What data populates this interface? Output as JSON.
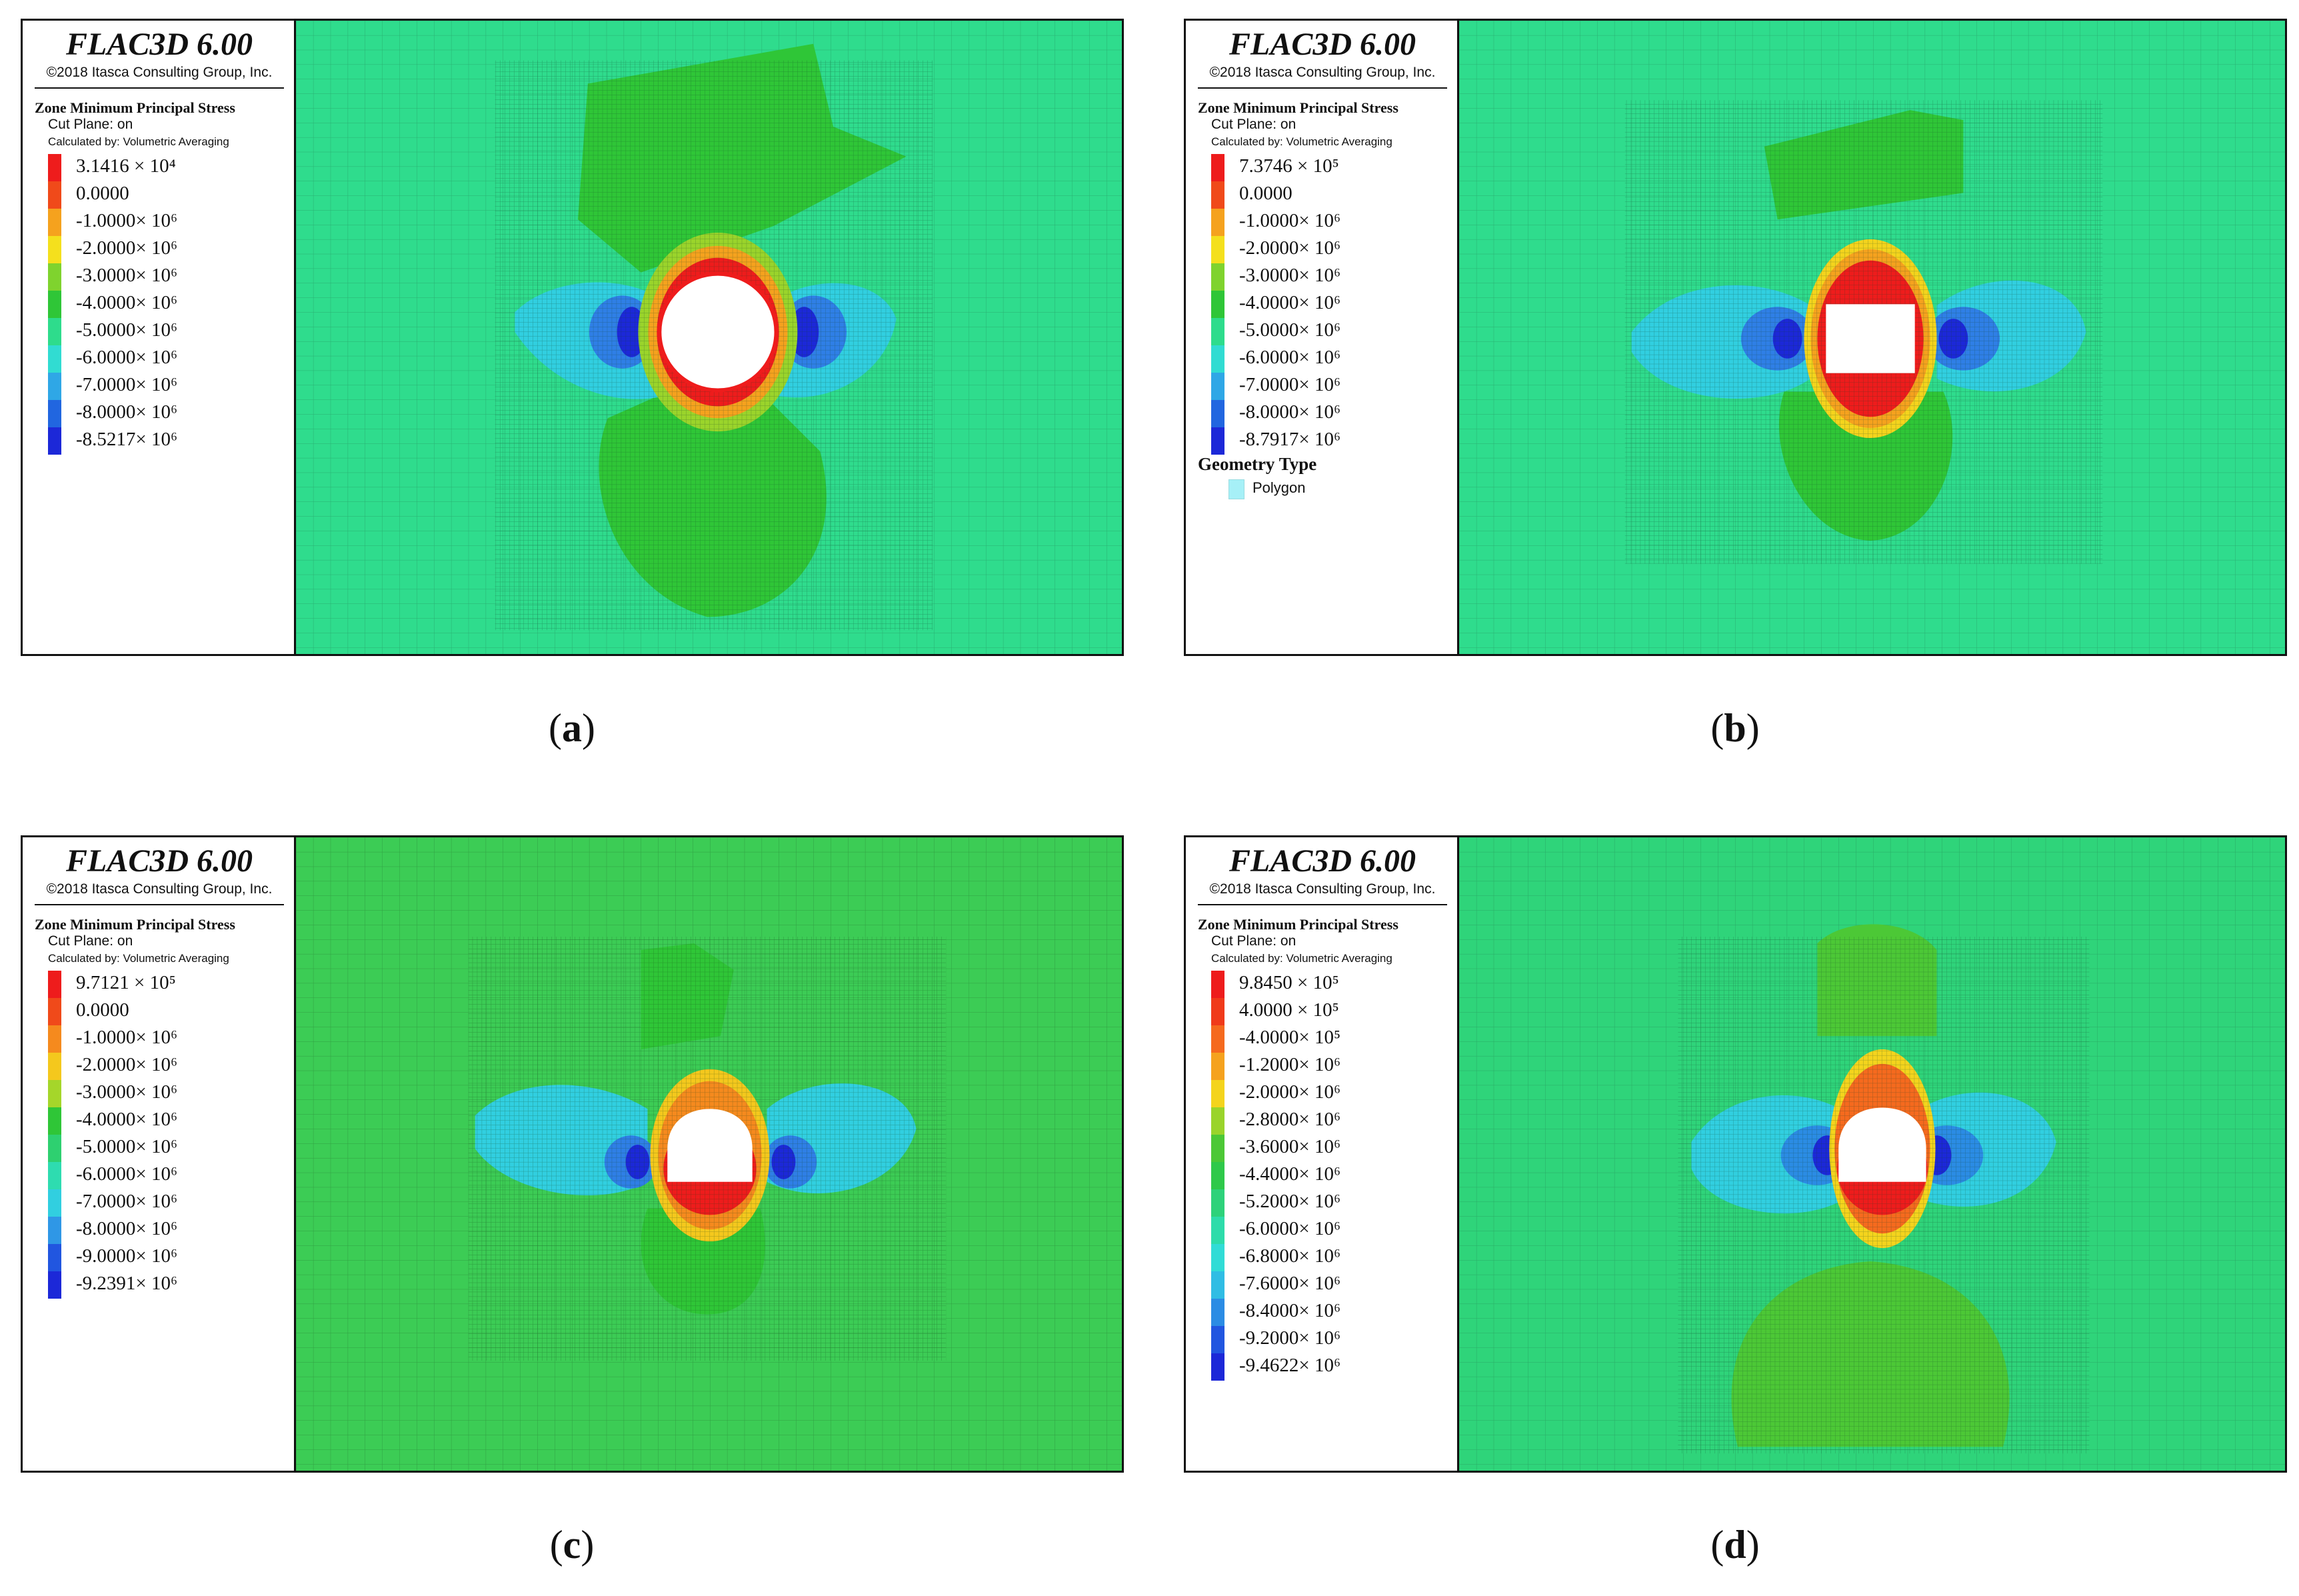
{
  "panels": [
    {
      "id": "a",
      "caption_letter": "a",
      "legend": {
        "title": "FLAC3D 6.00",
        "copyright": "©2018 Itasca Consulting Group, Inc.",
        "heading": "Zone Minimum Principal Stress",
        "cut_plane": "Cut Plane: on",
        "calculated": "Calculated by: Volumetric Averaging",
        "scale": [
          {
            "label": "3.1416 × 10⁴",
            "color": "#ee1c1c"
          },
          {
            "label": "0.0000",
            "color": "#f04a1a"
          },
          {
            "label": "-1.0000× 10⁶",
            "color": "#f5a21e"
          },
          {
            "label": "-2.0000× 10⁶",
            "color": "#f4e01d"
          },
          {
            "label": "-3.0000× 10⁶",
            "color": "#7fd32e"
          },
          {
            "label": "-4.0000× 10⁶",
            "color": "#2fc637"
          },
          {
            "label": "-5.0000× 10⁶",
            "color": "#2edc8c"
          },
          {
            "label": "-6.0000× 10⁶",
            "color": "#31dcd2"
          },
          {
            "label": "-7.0000× 10⁶",
            "color": "#2fa7e6"
          },
          {
            "label": "-8.0000× 10⁶",
            "color": "#2166e0"
          },
          {
            "label": "-8.5217× 10⁶",
            "color": "#1c28d8"
          }
        ]
      },
      "plot": {
        "background": "#2fdc8d",
        "opening_shape": "circle"
      }
    },
    {
      "id": "b",
      "caption_letter": "b",
      "legend": {
        "title": "FLAC3D 6.00",
        "copyright": "©2018 Itasca Consulting Group, Inc.",
        "heading": "Zone Minimum Principal Stress",
        "cut_plane": "Cut Plane: on",
        "calculated": "Calculated by: Volumetric Averaging",
        "scale": [
          {
            "label": "7.3746 × 10⁵",
            "color": "#ee1c1c"
          },
          {
            "label": "0.0000",
            "color": "#f04a1a"
          },
          {
            "label": "-1.0000× 10⁶",
            "color": "#f5a21e"
          },
          {
            "label": "-2.0000× 10⁶",
            "color": "#f4e01d"
          },
          {
            "label": "-3.0000× 10⁶",
            "color": "#7fd32e"
          },
          {
            "label": "-4.0000× 10⁶",
            "color": "#2fc637"
          },
          {
            "label": "-5.0000× 10⁶",
            "color": "#2edc8c"
          },
          {
            "label": "-6.0000× 10⁶",
            "color": "#31dcd2"
          },
          {
            "label": "-7.0000× 10⁶",
            "color": "#2fa7e6"
          },
          {
            "label": "-8.0000× 10⁶",
            "color": "#2166e0"
          },
          {
            "label": "-8.7917× 10⁶",
            "color": "#1c28d8"
          }
        ],
        "geometry_title": "Geometry Type",
        "geometry_item": "Polygon"
      },
      "plot": {
        "background": "#2fdc8d",
        "opening_shape": "rect"
      }
    },
    {
      "id": "c",
      "caption_letter": "c",
      "legend": {
        "title": "FLAC3D 6.00",
        "copyright": "©2018 Itasca Consulting Group, Inc.",
        "heading": "Zone Minimum Principal Stress",
        "cut_plane": "Cut Plane: on",
        "calculated": "Calculated by: Volumetric Averaging",
        "scale": [
          {
            "label": "9.7121 × 10⁵",
            "color": "#ee1c1c"
          },
          {
            "label": "0.0000",
            "color": "#f04a1a"
          },
          {
            "label": "-1.0000× 10⁶",
            "color": "#f58a1e"
          },
          {
            "label": "-2.0000× 10⁶",
            "color": "#f4c81d"
          },
          {
            "label": "-3.0000× 10⁶",
            "color": "#a5d62a"
          },
          {
            "label": "-4.0000× 10⁶",
            "color": "#2fc637"
          },
          {
            "label": "-5.0000× 10⁶",
            "color": "#2ed070"
          },
          {
            "label": "-6.0000× 10⁶",
            "color": "#2edcb0"
          },
          {
            "label": "-7.0000× 10⁶",
            "color": "#31cfe0"
          },
          {
            "label": "-8.0000× 10⁶",
            "color": "#2f97e6"
          },
          {
            "label": "-9.0000× 10⁶",
            "color": "#2156e0"
          },
          {
            "label": "-9.2391× 10⁶",
            "color": "#1c28d8"
          }
        ]
      },
      "plot": {
        "background": "#3ccc55",
        "opening_shape": "arch"
      }
    },
    {
      "id": "d",
      "caption_letter": "d",
      "legend": {
        "title": "FLAC3D 6.00",
        "copyright": "©2018 Itasca Consulting Group, Inc.",
        "heading": "Zone Minimum Principal Stress",
        "cut_plane": "Cut Plane: on",
        "calculated": "Calculated by: Volumetric Averaging",
        "scale": [
          {
            "label": "9.8450 × 10⁵",
            "color": "#ee1c1c"
          },
          {
            "label": "4.0000 × 10⁵",
            "color": "#f03a1a"
          },
          {
            "label": "-4.0000× 10⁵",
            "color": "#f56a1e"
          },
          {
            "label": "-1.2000× 10⁶",
            "color": "#f5a21e"
          },
          {
            "label": "-2.0000× 10⁶",
            "color": "#f4d41d"
          },
          {
            "label": "-2.8000× 10⁶",
            "color": "#9ad42b"
          },
          {
            "label": "-3.6000× 10⁶",
            "color": "#4cc836"
          },
          {
            "label": "-4.4000× 10⁶",
            "color": "#2fc94a"
          },
          {
            "label": "-5.2000× 10⁶",
            "color": "#2ed27a"
          },
          {
            "label": "-6.0000× 10⁶",
            "color": "#2edcaa"
          },
          {
            "label": "-6.8000× 10⁶",
            "color": "#31dcd6"
          },
          {
            "label": "-7.6000× 10⁶",
            "color": "#30bde4"
          },
          {
            "label": "-8.4000× 10⁶",
            "color": "#2b8ce4"
          },
          {
            "label": "-9.2000× 10⁶",
            "color": "#2156e0"
          },
          {
            "label": "-9.4622× 10⁶",
            "color": "#1c28d8"
          }
        ]
      },
      "plot": {
        "background": "#2fd47a",
        "opening_shape": "arch"
      }
    }
  ]
}
